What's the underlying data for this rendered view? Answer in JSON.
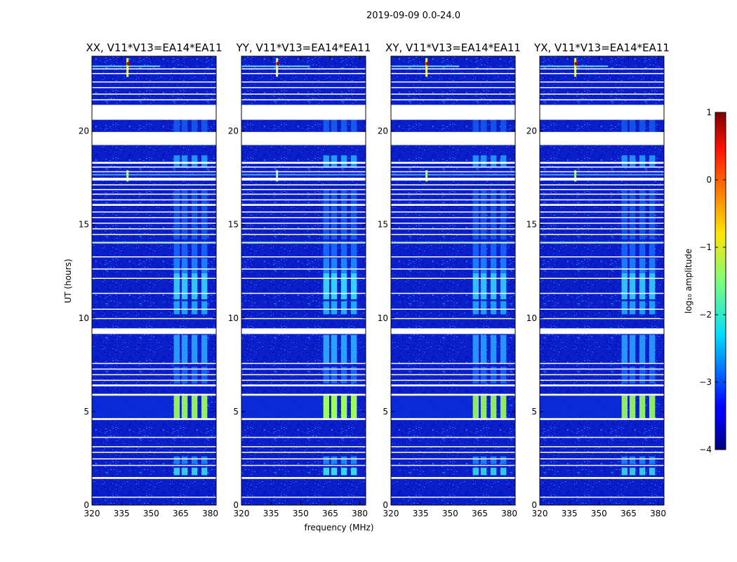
{
  "chart_data": {
    "type": "heatmap",
    "suptitle": "2019-09-09 0.0-24.0",
    "xlabel": "frequency (MHz)",
    "ylabel": "UT (hours)",
    "xlim": [
      320,
      383
    ],
    "ylim": [
      0,
      24
    ],
    "xticks": [
      320,
      335,
      350,
      365,
      380
    ],
    "yticks": [
      0,
      5,
      10,
      15,
      20
    ],
    "panels": [
      {
        "title": "XX, V11*V13=EA14*EA11",
        "rfi_strength": 0.85
      },
      {
        "title": "YY, V11*V13=EA14*EA11",
        "rfi_strength": 1.0
      },
      {
        "title": "XY, V11*V13=EA14*EA11",
        "rfi_strength": 0.8
      },
      {
        "title": "YX, V11*V13=EA14*EA11",
        "rfi_strength": 0.8
      }
    ],
    "colorbar": {
      "label": "log₁₀ amplitude",
      "range": [
        -4,
        1
      ],
      "ticks": [
        "1",
        "0",
        "−1",
        "−2",
        "−3",
        "−4"
      ],
      "colormap": "jet"
    },
    "blank_rows_hours": [
      [
        0.4,
        0.45
      ],
      [
        1.4,
        1.5
      ],
      [
        2.1,
        2.15
      ],
      [
        2.45,
        2.5
      ],
      [
        2.8,
        2.85
      ],
      [
        3.1,
        3.15
      ],
      [
        3.6,
        3.65
      ],
      [
        4.55,
        4.65
      ],
      [
        5.85,
        5.95
      ],
      [
        6.35,
        6.45
      ],
      [
        6.65,
        6.7
      ],
      [
        6.95,
        7.0
      ],
      [
        7.25,
        7.3
      ],
      [
        7.55,
        7.6
      ],
      [
        9.15,
        9.45
      ],
      [
        9.95,
        10.0
      ],
      [
        10.45,
        10.5
      ],
      [
        11.3,
        11.35
      ],
      [
        12.1,
        12.15
      ],
      [
        12.6,
        12.65
      ],
      [
        13.25,
        13.3
      ],
      [
        14.0,
        14.05
      ],
      [
        14.45,
        14.5
      ],
      [
        14.75,
        14.8
      ],
      [
        15.05,
        15.1
      ],
      [
        15.35,
        15.4
      ],
      [
        15.65,
        15.7
      ],
      [
        16.0,
        16.1
      ],
      [
        16.3,
        16.35
      ],
      [
        16.6,
        16.65
      ],
      [
        16.85,
        16.9
      ],
      [
        17.1,
        17.15
      ],
      [
        17.35,
        17.5
      ],
      [
        17.8,
        17.85
      ],
      [
        18.05,
        18.1
      ],
      [
        18.25,
        18.35
      ],
      [
        19.25,
        19.95
      ],
      [
        20.6,
        21.4
      ],
      [
        21.65,
        21.7
      ],
      [
        21.95,
        22.0
      ],
      [
        22.3,
        22.35
      ],
      [
        22.6,
        22.65
      ],
      [
        23.05,
        23.1
      ],
      [
        23.3,
        23.35
      ]
    ],
    "rfi_blocks_mhz": [
      [
        361.5,
        364.5
      ],
      [
        365.5,
        368.5
      ],
      [
        370.5,
        373.5
      ],
      [
        375.5,
        378.5
      ]
    ]
  }
}
